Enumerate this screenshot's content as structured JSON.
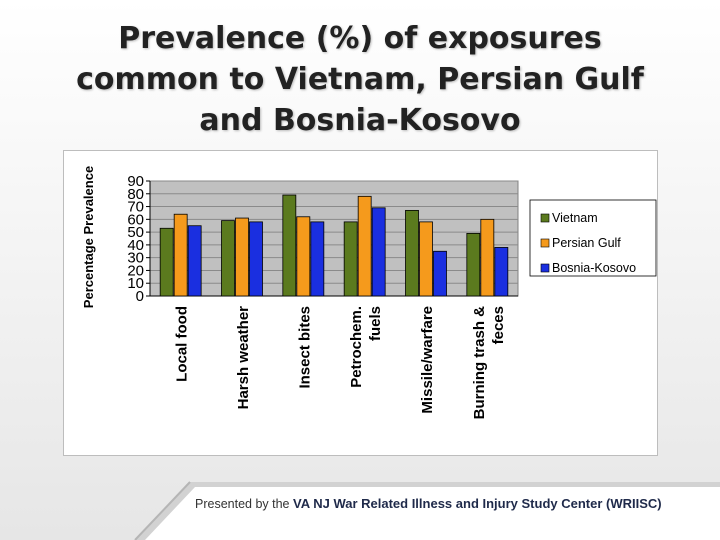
{
  "slide": {
    "title_lines": [
      "Prevalence (%) of exposures",
      "common to Vietnam, Persian Gulf",
      "and Bosnia-Kosovo"
    ]
  },
  "chart_data": {
    "type": "bar",
    "title": "",
    "xlabel": "",
    "ylabel": "Percentage Prevalence",
    "ylim": [
      0,
      90
    ],
    "yticks": [
      0,
      10,
      20,
      30,
      40,
      50,
      60,
      70,
      80,
      90
    ],
    "grid": true,
    "legend_position": "right",
    "categories": [
      [
        "Local food"
      ],
      [
        "Harsh weather"
      ],
      [
        "Insect bites"
      ],
      [
        "Petrochem.",
        "fuels"
      ],
      [
        "Missile/warfare"
      ],
      [
        "Burning trash &",
        "feces"
      ]
    ],
    "series": [
      {
        "name": "Vietnam",
        "color": "#5b7a1e",
        "values": [
          53,
          59,
          79,
          58,
          67,
          49
        ]
      },
      {
        "name": "Persian Gulf",
        "color": "#f59a1c",
        "values": [
          64,
          61,
          62,
          78,
          58,
          60
        ]
      },
      {
        "name": "Bosnia-Kosovo",
        "color": "#1a2fe0",
        "values": [
          55,
          58,
          58,
          69,
          35,
          38
        ]
      }
    ],
    "plot_background": "#c0c0c0"
  },
  "footer": {
    "prefix": "Presented by the ",
    "org": "VA NJ War Related Illness and Injury Study Center (WRIISC)"
  }
}
